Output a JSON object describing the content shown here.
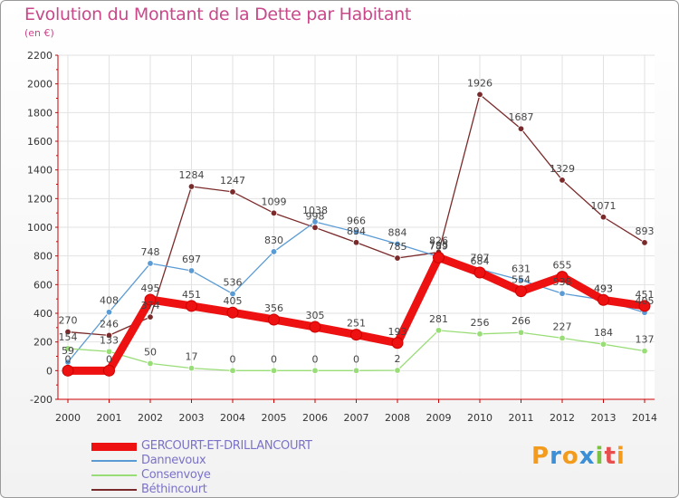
{
  "title": "Evolution du Montant de la Dette par Habitant",
  "subtitle": "(en €)",
  "logo": {
    "letters": [
      "P",
      "r",
      "o",
      "x",
      "i",
      "t",
      "i"
    ],
    "colors": [
      "#f29b1d",
      "#3b8fd6",
      "#f29b1d",
      "#3b8fd6",
      "#7cc242",
      "#e94e4e",
      "#f29b1d"
    ]
  },
  "chart_data": {
    "type": "line",
    "title": "Evolution du Montant de la Dette par Habitant",
    "ylabel": "(en €)",
    "xlabel": "",
    "x": [
      "2000",
      "2001",
      "2002",
      "2003",
      "2004",
      "2005",
      "2006",
      "2007",
      "2008",
      "2009",
      "2010",
      "2011",
      "2012",
      "2013",
      "2014"
    ],
    "ylim": [
      -200,
      2200
    ],
    "yticks": [
      "-200",
      "0",
      "200",
      "400",
      "600",
      "800",
      "1000",
      "1200",
      "1400",
      "1600",
      "1800",
      "2000",
      "2200"
    ],
    "grid": true,
    "legend_position": "bottom-left",
    "series": [
      {
        "name": "GERCOURT-ET-DRILLANCOURT",
        "color": "#ee1111",
        "values": [
          0,
          0,
          495,
          451,
          405,
          356,
          305,
          251,
          193,
          789,
          684,
          554,
          655,
          493,
          451
        ],
        "labels": [
          "0",
          "0",
          "495",
          "451",
          "405",
          "356",
          "305",
          "251",
          "193",
          "789",
          "684",
          "554",
          "655",
          "493",
          "451"
        ]
      },
      {
        "name": "Dannevoux",
        "color": "#5b9bd5",
        "values": [
          59,
          408,
          748,
          697,
          536,
          830,
          1038,
          966,
          884,
          795,
          707,
          631,
          538,
          493,
          405
        ],
        "labels": [
          "59",
          "408",
          "748",
          "697",
          "536",
          "830",
          "1038",
          "966",
          "884",
          "795",
          "707",
          "631",
          "538",
          "493",
          "405"
        ]
      },
      {
        "name": "Consenvoye",
        "color": "#99dd77",
        "values": [
          154,
          133,
          50,
          17,
          0,
          0,
          0,
          0,
          2,
          281,
          256,
          266,
          227,
          184,
          137
        ],
        "labels": [
          "154",
          "133",
          "50",
          "17",
          "0",
          "0",
          "0",
          "0",
          "2",
          "281",
          "256",
          "266",
          "227",
          "184",
          "137"
        ]
      },
      {
        "name": "Béthincourt",
        "color": "#7a2a2a",
        "values": [
          270,
          246,
          374,
          1284,
          1247,
          1099,
          998,
          894,
          785,
          826,
          1926,
          1687,
          1329,
          1071,
          893
        ],
        "labels": [
          "270",
          "246",
          "374",
          "1284",
          "1247",
          "1099",
          "998",
          "894",
          "785",
          "826",
          "1926",
          "1687",
          "1329",
          "1071",
          "893"
        ]
      }
    ]
  }
}
